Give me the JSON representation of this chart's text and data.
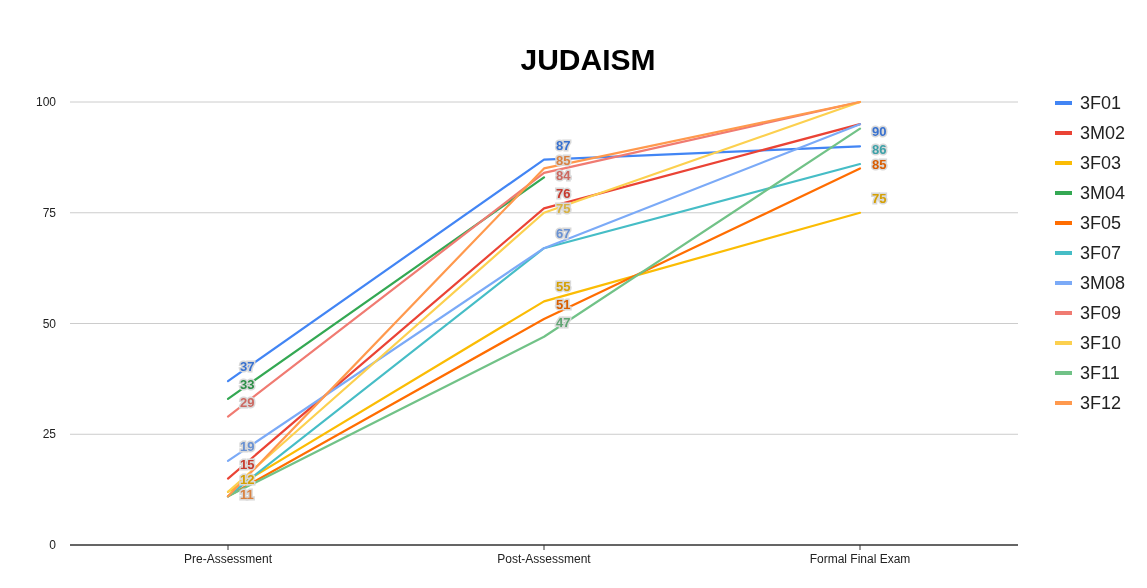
{
  "chart_data": {
    "type": "line",
    "title": "JUDAISM",
    "categories": [
      "Pre-Assessment",
      "Post-Assessment",
      "Formal Final Exam"
    ],
    "ylim": [
      0,
      100
    ],
    "yticks": [
      0,
      25,
      50,
      75,
      100
    ],
    "grid": "y",
    "legend": "right",
    "marker": "none",
    "series": [
      {
        "name": "3F01",
        "color": "#4285f4",
        "values": [
          37,
          87,
          90
        ],
        "value_labels": [
          "37",
          "87",
          "90"
        ]
      },
      {
        "name": "3M02",
        "color": "#ea4335",
        "values": [
          15,
          76,
          95
        ],
        "value_labels": [
          "15",
          "76",
          null
        ]
      },
      {
        "name": "3F03",
        "color": "#fbbc04",
        "values": [
          12,
          55,
          75
        ],
        "value_labels": [
          "12",
          "55",
          "75"
        ]
      },
      {
        "name": "3M04",
        "color": "#34a853",
        "values": [
          33,
          83,
          null
        ],
        "value_labels": [
          "33",
          null,
          null
        ]
      },
      {
        "name": "3F05",
        "color": "#ff6d01",
        "values": [
          11,
          51,
          85
        ],
        "value_labels": [
          null,
          "51",
          "85"
        ]
      },
      {
        "name": "3F07",
        "color": "#46bdc6",
        "values": [
          11,
          67,
          86
        ],
        "value_labels": [
          null,
          null,
          "86"
        ]
      },
      {
        "name": "3M08",
        "color": "#7baaf7",
        "values": [
          19,
          67,
          95
        ],
        "value_labels": [
          "19",
          "67",
          null
        ]
      },
      {
        "name": "3F09",
        "color": "#f07b72",
        "values": [
          29,
          84,
          100
        ],
        "value_labels": [
          "29",
          "84",
          null
        ]
      },
      {
        "name": "3F10",
        "color": "#fcd04f",
        "values": [
          12,
          75,
          100
        ],
        "value_labels": [
          null,
          "75",
          null
        ]
      },
      {
        "name": "3F11",
        "color": "#71c287",
        "values": [
          11,
          47,
          94
        ],
        "value_labels": [
          null,
          "47",
          null
        ]
      },
      {
        "name": "3F12",
        "color": "#ff994d",
        "values": [
          11,
          85,
          100
        ],
        "value_labels": [
          "11",
          "85",
          null
        ]
      }
    ]
  }
}
